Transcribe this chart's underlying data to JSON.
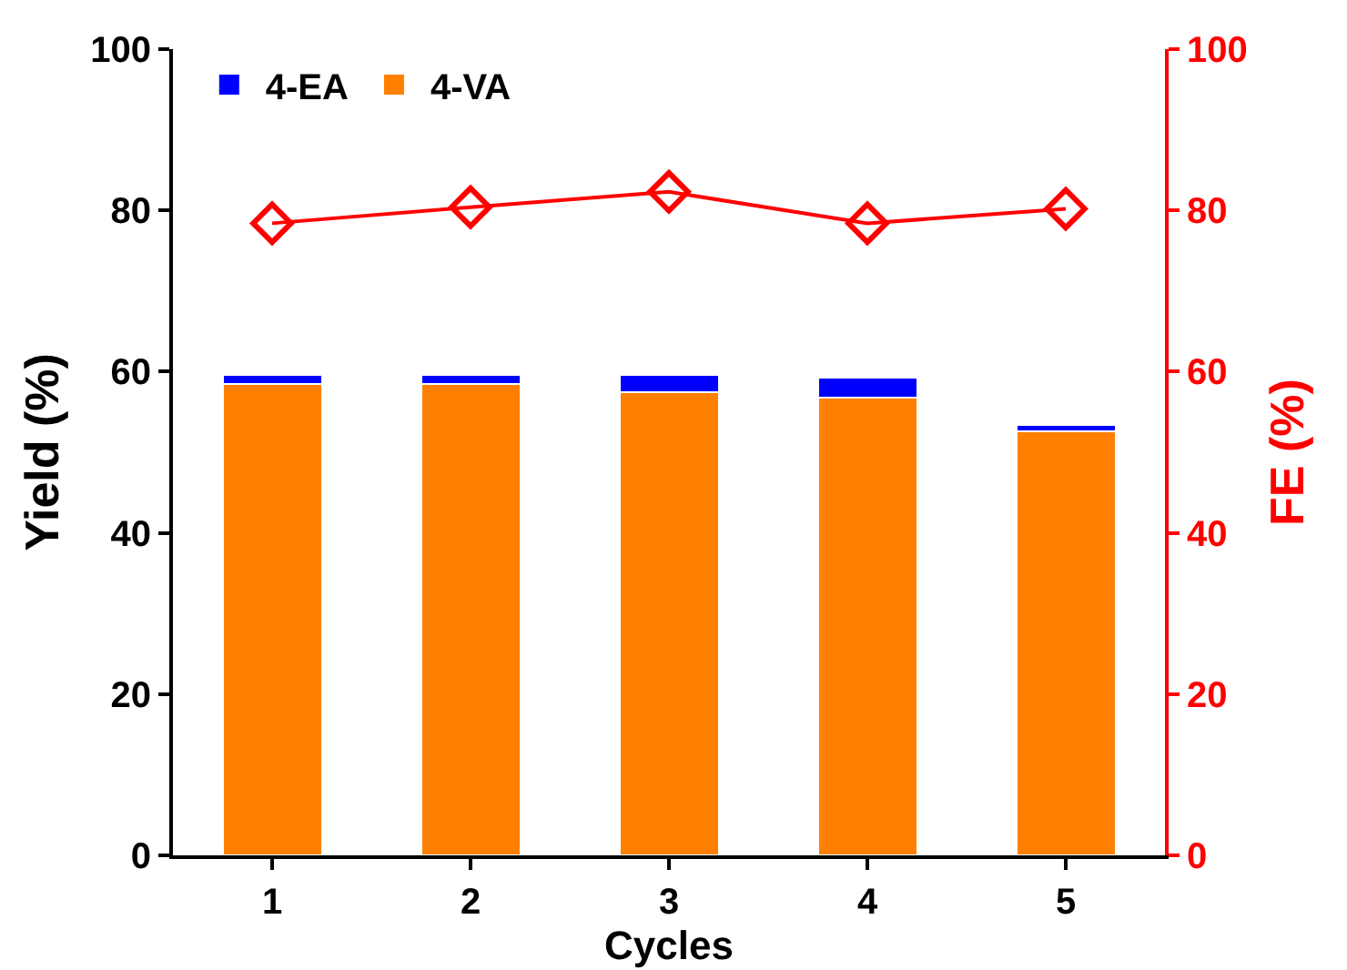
{
  "chart_data": {
    "type": "bar",
    "stacked": true,
    "xlabel": "Cycles",
    "ylabel": "Yield (%)",
    "y2label": "FE (%)",
    "categories": [
      "1",
      "2",
      "3",
      "4",
      "5"
    ],
    "series": [
      {
        "name": "4-VA",
        "color": "#ff8000",
        "values": [
          58.5,
          58.5,
          57.4,
          56.8,
          52.6
        ]
      },
      {
        "name": "4-EA",
        "color": "#0000ff",
        "values": [
          1.1,
          1.1,
          2.2,
          2.4,
          0.8
        ]
      },
      {
        "type": "line",
        "axis": "y2",
        "color": "#ff0000",
        "values": [
          78.4,
          80.4,
          82.3,
          78.4,
          80.2
        ]
      }
    ],
    "ylim": [
      0,
      100
    ],
    "yticks": [
      0,
      20,
      40,
      60,
      80,
      100
    ],
    "y2lim": [
      0,
      100
    ],
    "y2ticks": [
      0,
      20,
      40,
      60,
      80,
      100
    ],
    "marker": "diamond",
    "grid": false,
    "legend": "top left"
  }
}
